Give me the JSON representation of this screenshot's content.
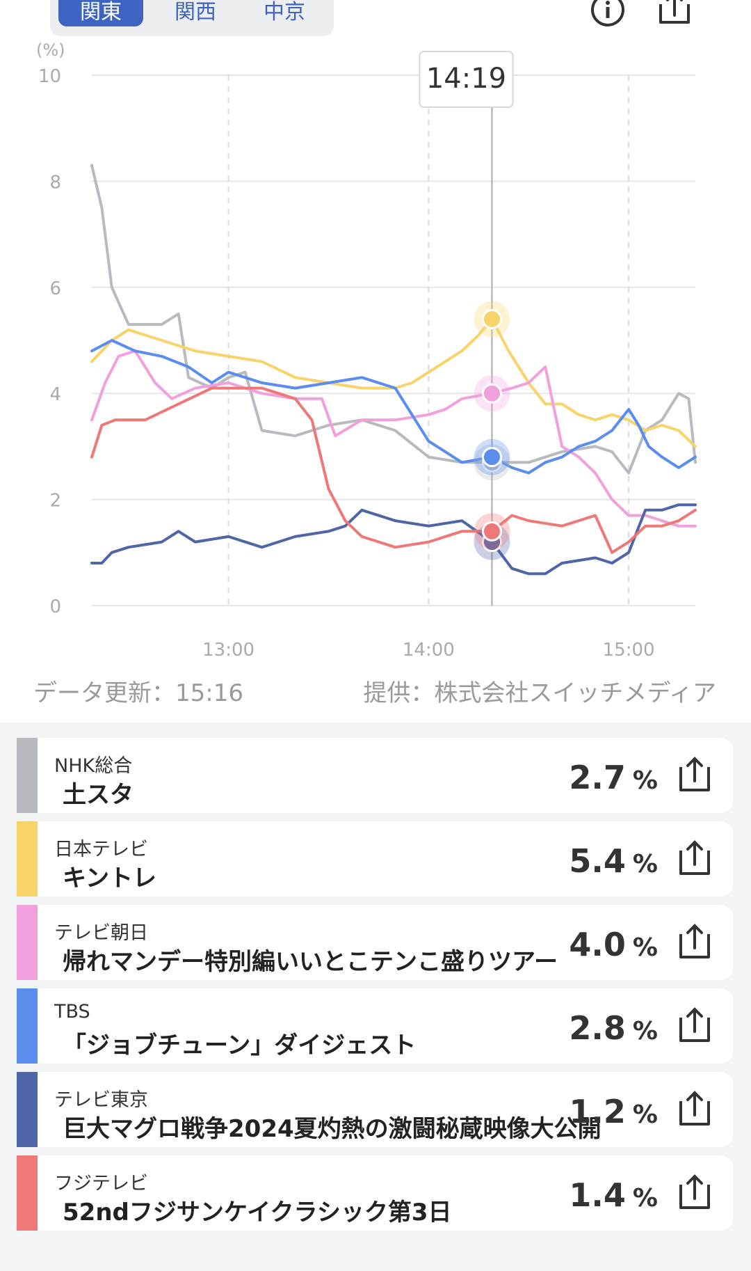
{
  "region_tabs": [
    {
      "label": "関東",
      "active": true
    },
    {
      "label": "関西",
      "active": false
    },
    {
      "label": "中京",
      "active": false
    }
  ],
  "icons": {
    "info": "info-icon",
    "share": "share-icon"
  },
  "chart_data": {
    "type": "line",
    "y_unit": "(%)",
    "ylim": [
      0,
      10
    ],
    "y_ticks": [
      0,
      2,
      4,
      6,
      8,
      10
    ],
    "x_range": [
      "12:19",
      "15:20"
    ],
    "x_ticks": [
      "13:00",
      "14:00",
      "15:00"
    ],
    "grid": true,
    "cursor_label": "14:19",
    "series": [
      {
        "name": "NHK総合",
        "color": "#b7babf",
        "x": [
          "12:19",
          "12:22",
          "12:25",
          "12:30",
          "12:40",
          "12:45",
          "12:48",
          "12:55",
          "13:00",
          "13:05",
          "13:10",
          "13:20",
          "13:30",
          "13:40",
          "13:50",
          "14:00",
          "14:10",
          "14:19",
          "14:30",
          "14:40",
          "14:50",
          "14:55",
          "15:00",
          "15:05",
          "15:10",
          "15:15",
          "15:18",
          "15:20"
        ],
        "values": [
          8.3,
          7.5,
          6.0,
          5.3,
          5.3,
          5.5,
          4.3,
          4.1,
          4.3,
          4.4,
          3.3,
          3.2,
          3.4,
          3.5,
          3.3,
          2.8,
          2.7,
          2.7,
          2.7,
          2.9,
          3.0,
          2.9,
          2.5,
          3.3,
          3.5,
          4.0,
          3.9,
          2.7
        ]
      },
      {
        "name": "日本テレビ",
        "color": "#f7d36a",
        "x": [
          "12:19",
          "12:25",
          "12:30",
          "12:40",
          "12:50",
          "13:00",
          "13:10",
          "13:20",
          "13:30",
          "13:40",
          "13:50",
          "13:55",
          "14:00",
          "14:05",
          "14:10",
          "14:15",
          "14:19",
          "14:24",
          "14:30",
          "14:35",
          "14:40",
          "14:45",
          "14:50",
          "14:55",
          "15:00",
          "15:05",
          "15:10",
          "15:15",
          "15:20"
        ],
        "values": [
          4.6,
          5.0,
          5.2,
          5.0,
          4.8,
          4.7,
          4.6,
          4.3,
          4.2,
          4.1,
          4.1,
          4.2,
          4.4,
          4.6,
          4.8,
          5.1,
          5.4,
          4.8,
          4.2,
          3.8,
          3.8,
          3.6,
          3.5,
          3.6,
          3.5,
          3.3,
          3.4,
          3.3,
          3.0
        ]
      },
      {
        "name": "テレビ朝日",
        "color": "#f2a0dc",
        "x": [
          "12:19",
          "12:23",
          "12:27",
          "12:32",
          "12:38",
          "12:43",
          "12:50",
          "13:00",
          "13:10",
          "13:20",
          "13:28",
          "13:32",
          "13:40",
          "13:50",
          "14:00",
          "14:05",
          "14:10",
          "14:19",
          "14:25",
          "14:30",
          "14:35",
          "14:40",
          "14:45",
          "14:50",
          "14:55",
          "15:00",
          "15:05",
          "15:10",
          "15:15",
          "15:20"
        ],
        "values": [
          3.5,
          4.2,
          4.7,
          4.8,
          4.2,
          3.9,
          4.1,
          4.2,
          4.0,
          3.9,
          3.9,
          3.2,
          3.5,
          3.5,
          3.6,
          3.7,
          3.9,
          4.0,
          4.1,
          4.2,
          4.5,
          3.0,
          2.8,
          2.5,
          2.0,
          1.7,
          1.7,
          1.6,
          1.5,
          1.5
        ]
      },
      {
        "name": "TBS",
        "color": "#5b8def",
        "x": [
          "12:19",
          "12:25",
          "12:32",
          "12:40",
          "12:48",
          "12:55",
          "13:00",
          "13:10",
          "13:20",
          "13:30",
          "13:40",
          "13:50",
          "13:55",
          "14:00",
          "14:05",
          "14:10",
          "14:19",
          "14:25",
          "14:30",
          "14:35",
          "14:40",
          "14:45",
          "14:50",
          "14:55",
          "15:00",
          "15:03",
          "15:06",
          "15:10",
          "15:15",
          "15:20"
        ],
        "values": [
          4.8,
          5.0,
          4.8,
          4.7,
          4.5,
          4.2,
          4.4,
          4.2,
          4.1,
          4.2,
          4.3,
          4.1,
          3.6,
          3.1,
          2.9,
          2.7,
          2.8,
          2.6,
          2.5,
          2.7,
          2.8,
          3.0,
          3.1,
          3.3,
          3.7,
          3.4,
          3.0,
          2.8,
          2.6,
          2.8
        ]
      },
      {
        "name": "テレビ東京",
        "color": "#4e65a8",
        "x": [
          "12:19",
          "12:22",
          "12:25",
          "12:30",
          "12:40",
          "12:45",
          "12:50",
          "13:00",
          "13:10",
          "13:20",
          "13:30",
          "13:35",
          "13:40",
          "13:50",
          "14:00",
          "14:10",
          "14:19",
          "14:25",
          "14:30",
          "14:35",
          "14:40",
          "14:50",
          "14:55",
          "15:00",
          "15:05",
          "15:10",
          "15:15",
          "15:20"
        ],
        "values": [
          0.8,
          0.8,
          1.0,
          1.1,
          1.2,
          1.4,
          1.2,
          1.3,
          1.1,
          1.3,
          1.4,
          1.5,
          1.8,
          1.6,
          1.5,
          1.6,
          1.2,
          0.7,
          0.6,
          0.6,
          0.8,
          0.9,
          0.8,
          1.0,
          1.8,
          1.8,
          1.9,
          1.9
        ]
      },
      {
        "name": "フジテレビ",
        "color": "#ee7878",
        "x": [
          "12:19",
          "12:22",
          "12:26",
          "12:35",
          "12:45",
          "12:55",
          "13:00",
          "13:10",
          "13:20",
          "13:25",
          "13:30",
          "13:35",
          "13:40",
          "13:50",
          "14:00",
          "14:10",
          "14:19",
          "14:25",
          "14:30",
          "14:40",
          "14:50",
          "14:55",
          "15:00",
          "15:05",
          "15:10",
          "15:15",
          "15:20"
        ],
        "values": [
          2.8,
          3.4,
          3.5,
          3.5,
          3.8,
          4.1,
          4.1,
          4.1,
          3.9,
          3.5,
          2.2,
          1.6,
          1.3,
          1.1,
          1.2,
          1.4,
          1.4,
          1.7,
          1.6,
          1.5,
          1.7,
          1.0,
          1.2,
          1.5,
          1.5,
          1.6,
          1.8
        ]
      }
    ]
  },
  "footer": {
    "updated": "データ更新：15:16",
    "provider": "提供：株式会社スイッチメディア"
  },
  "channels": [
    {
      "channel": "NHK総合",
      "program": "土スタ",
      "rating": "2.7",
      "unit": "%",
      "color": "#b7babf"
    },
    {
      "channel": "日本テレビ",
      "program": "キントレ",
      "rating": "5.4",
      "unit": "%",
      "color": "#f7d36a"
    },
    {
      "channel": "テレビ朝日",
      "program": "帰れマンデー特別編いいとこテンこ盛りツアー",
      "rating": "4.0",
      "unit": "%",
      "color": "#f2a0dc"
    },
    {
      "channel": "TBS",
      "program": "「ジョブチューン」ダイジェスト",
      "rating": "2.8",
      "unit": "%",
      "color": "#5b8def"
    },
    {
      "channel": "テレビ東京",
      "program": "巨大マグロ戦争2024夏灼熱の激闘秘蔵映像大公開",
      "rating": "1.2",
      "unit": "%",
      "color": "#4e65a8"
    },
    {
      "channel": "フジテレビ",
      "program": "52ndフジサンケイクラシック第3日",
      "rating": "1.4",
      "unit": "%",
      "color": "#ee7878"
    }
  ]
}
